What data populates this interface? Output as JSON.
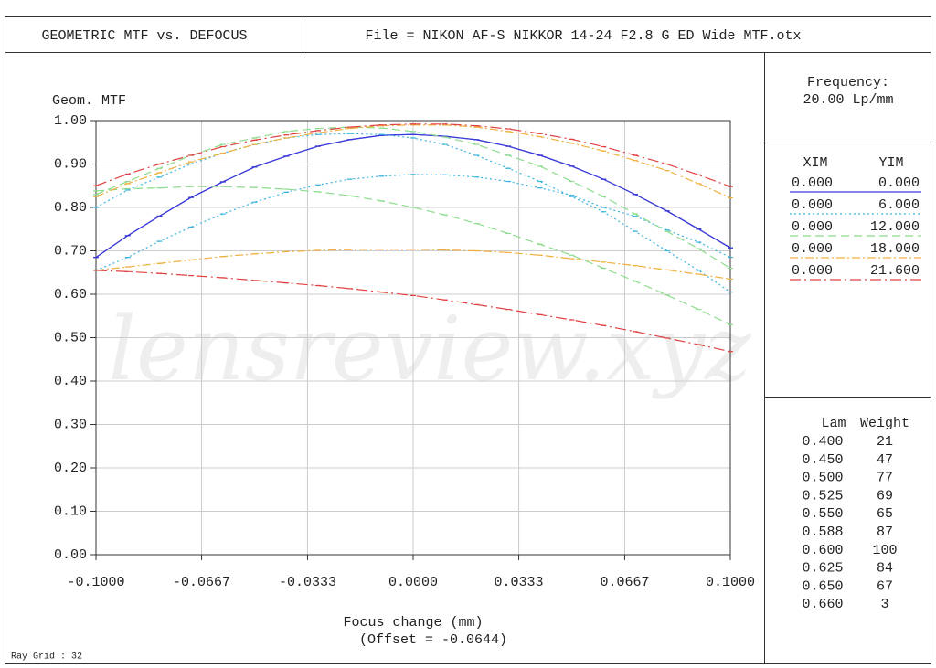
{
  "header": {
    "title": "GEOMETRIC MTF vs. DEFOCUS",
    "file": "File = NIKON AF-S NIKKOR 14-24 F2.8 G ED Wide MTF.otx"
  },
  "chart_data": {
    "type": "line",
    "ylabel": "Geom. MTF",
    "xlabel": "Focus change (mm)",
    "offset_note": "(Offset = -0.0644)",
    "watermark": "lensreview.xyz",
    "x": [
      -0.1,
      -0.09,
      -0.08,
      -0.07,
      -0.06,
      -0.05,
      -0.04,
      -0.03,
      -0.02,
      -0.01,
      0,
      0.01,
      0.02,
      0.03,
      0.04,
      0.05,
      0.06,
      0.07,
      0.08,
      0.09,
      0.1
    ],
    "xlim": [
      -0.1,
      0.1
    ],
    "xticks": [
      {
        "value": -0.1,
        "label": "-0.1000"
      },
      {
        "value": -0.0667,
        "label": "-0.0667"
      },
      {
        "value": -0.0333,
        "label": "-0.0333"
      },
      {
        "value": 0,
        "label": "0.0000"
      },
      {
        "value": 0.0333,
        "label": "0.0333"
      },
      {
        "value": 0.0667,
        "label": "0.0667"
      },
      {
        "value": 0.1,
        "label": "0.1000"
      }
    ],
    "ylim": [
      0,
      1
    ],
    "yticks": [
      {
        "value": 0,
        "label": "0.00"
      },
      {
        "value": 0.1,
        "label": "0.10"
      },
      {
        "value": 0.2,
        "label": "0.20"
      },
      {
        "value": 0.3,
        "label": "0.30"
      },
      {
        "value": 0.4,
        "label": "0.40"
      },
      {
        "value": 0.5,
        "label": "0.50"
      },
      {
        "value": 0.6,
        "label": "0.60"
      },
      {
        "value": 0.7,
        "label": "0.70"
      },
      {
        "value": 0.8,
        "label": "0.80"
      },
      {
        "value": 0.9,
        "label": "0.90"
      },
      {
        "value": 1,
        "label": "1.00"
      }
    ],
    "grid": true,
    "series": [
      {
        "xim": "0.000",
        "yim": "0.000",
        "color": "#3a3ad8",
        "dash": "none",
        "tangential": [
          0.685,
          0.735,
          0.78,
          0.823,
          0.859,
          0.893,
          0.918,
          0.941,
          0.956,
          0.966,
          0.968,
          0.964,
          0.956,
          0.941,
          0.92,
          0.895,
          0.865,
          0.83,
          0.792,
          0.75,
          0.707
        ],
        "sagittal": [
          0.685,
          0.735,
          0.78,
          0.823,
          0.859,
          0.893,
          0.918,
          0.941,
          0.956,
          0.966,
          0.968,
          0.964,
          0.956,
          0.941,
          0.92,
          0.895,
          0.865,
          0.83,
          0.792,
          0.75,
          0.707
        ]
      },
      {
        "xim": "0.000",
        "yim": "6.000",
        "color": "#3ab4e0",
        "dash": "2 3",
        "tangential": [
          0.655,
          0.685,
          0.722,
          0.755,
          0.785,
          0.812,
          0.835,
          0.852,
          0.865,
          0.872,
          0.876,
          0.875,
          0.87,
          0.86,
          0.845,
          0.828,
          0.8,
          0.78,
          0.748,
          0.72,
          0.685
        ],
        "sagittal": [
          0.8,
          0.84,
          0.87,
          0.9,
          0.925,
          0.945,
          0.96,
          0.968,
          0.97,
          0.968,
          0.96,
          0.945,
          0.92,
          0.89,
          0.86,
          0.825,
          0.79,
          0.745,
          0.7,
          0.655,
          0.605
        ]
      },
      {
        "xim": "0.000",
        "yim": "12.000",
        "color": "#8cdc8c",
        "dash": "9 5",
        "tangential": [
          0.838,
          0.843,
          0.845,
          0.848,
          0.848,
          0.846,
          0.842,
          0.836,
          0.827,
          0.815,
          0.8,
          0.783,
          0.763,
          0.74,
          0.715,
          0.69,
          0.66,
          0.63,
          0.598,
          0.565,
          0.53
        ],
        "sagittal": [
          0.83,
          0.86,
          0.89,
          0.92,
          0.945,
          0.96,
          0.975,
          0.982,
          0.985,
          0.983,
          0.975,
          0.962,
          0.945,
          0.92,
          0.895,
          0.86,
          0.825,
          0.785,
          0.745,
          0.705,
          0.66
        ]
      },
      {
        "xim": "0.000",
        "yim": "18.000",
        "color": "#f0b040",
        "dash": "9 3 2 3",
        "tangential": [
          0.655,
          0.663,
          0.671,
          0.679,
          0.687,
          0.693,
          0.698,
          0.701,
          0.703,
          0.704,
          0.704,
          0.702,
          0.7,
          0.696,
          0.69,
          0.682,
          0.674,
          0.666,
          0.656,
          0.646,
          0.635
        ],
        "sagittal": [
          0.825,
          0.855,
          0.88,
          0.905,
          0.925,
          0.945,
          0.96,
          0.972,
          0.982,
          0.988,
          0.99,
          0.99,
          0.985,
          0.975,
          0.963,
          0.948,
          0.93,
          0.908,
          0.885,
          0.855,
          0.822
        ]
      },
      {
        "xim": "0.000",
        "yim": "21.600",
        "color": "#e04040",
        "dash": "12 4 2 4",
        "tangential": [
          0.655,
          0.652,
          0.648,
          0.643,
          0.638,
          0.632,
          0.626,
          0.62,
          0.613,
          0.605,
          0.597,
          0.587,
          0.576,
          0.565,
          0.553,
          0.541,
          0.528,
          0.514,
          0.499,
          0.484,
          0.468
        ],
        "sagittal": [
          0.85,
          0.877,
          0.9,
          0.92,
          0.94,
          0.955,
          0.967,
          0.977,
          0.985,
          0.99,
          0.992,
          0.992,
          0.988,
          0.981,
          0.97,
          0.957,
          0.94,
          0.92,
          0.9,
          0.875,
          0.848
        ]
      }
    ]
  },
  "panel": {
    "frequency_label": "Frequency:",
    "frequency": "20.00  Lp/mm",
    "field_header": [
      "XIM",
      "YIM"
    ],
    "wavelength_header": [
      "Lam",
      "Weight"
    ],
    "wavelengths": [
      [
        "0.400",
        21
      ],
      [
        "0.450",
        47
      ],
      [
        "0.500",
        77
      ],
      [
        "0.525",
        69
      ],
      [
        "0.550",
        65
      ],
      [
        "0.588",
        87
      ],
      [
        "0.600",
        100
      ],
      [
        "0.625",
        84
      ],
      [
        "0.650",
        67
      ],
      [
        "0.660",
        3
      ]
    ]
  },
  "footer": "Ray Grid : 32"
}
